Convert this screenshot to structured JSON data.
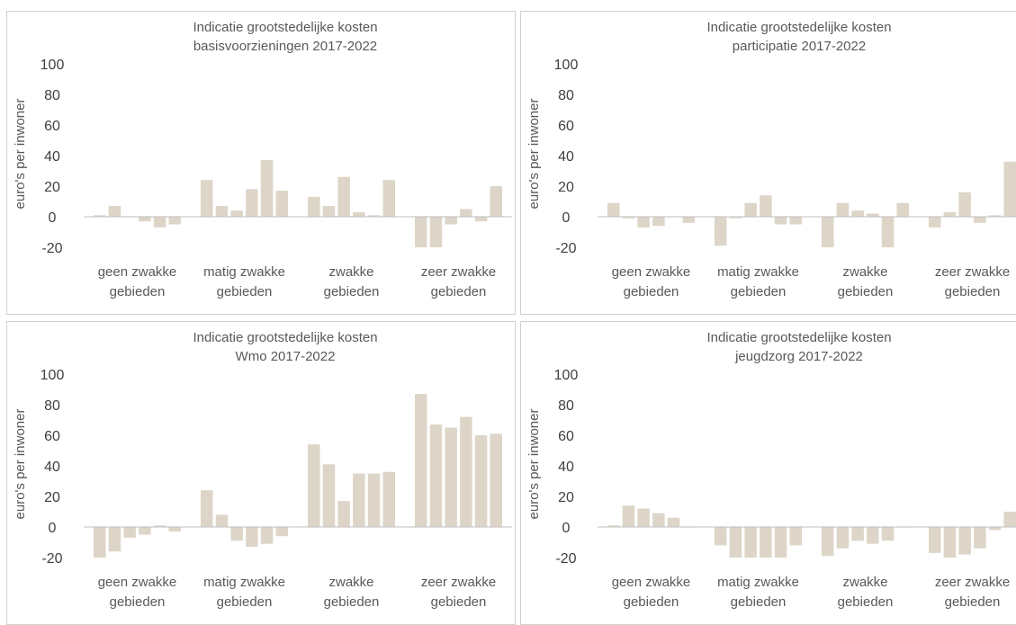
{
  "bar_color": "#ddd5c8",
  "axis_color": "#bfbfbf",
  "chart_data": [
    {
      "type": "bar",
      "title": [
        "Indicatie grootstedelijke kosten",
        "basisvoorzieningen 2017-2022"
      ],
      "ylabel": "euro's per inwoner",
      "ylim": [
        -20,
        100
      ],
      "yticks": [
        100,
        80,
        60,
        40,
        20,
        0,
        -20
      ],
      "categories": [
        [
          "geen zwakke",
          "gebieden"
        ],
        [
          "matig zwakke",
          "gebieden"
        ],
        [
          "zwakke",
          "gebieden"
        ],
        [
          "zeer zwakke",
          "gebieden"
        ]
      ],
      "values": [
        [
          1,
          7,
          0,
          -3,
          -7,
          -5
        ],
        [
          24,
          7,
          4,
          18,
          37,
          17
        ],
        [
          13,
          7,
          26,
          3,
          1,
          24
        ],
        [
          -20,
          -20,
          -5,
          5,
          -3,
          20
        ]
      ]
    },
    {
      "type": "bar",
      "title": [
        "Indicatie grootstedelijke kosten",
        "participatie 2017-2022"
      ],
      "ylabel": "euro's per inwoner",
      "ylim": [
        -20,
        100
      ],
      "yticks": [
        100,
        80,
        60,
        40,
        20,
        0,
        -20
      ],
      "categories": [
        [
          "geen zwakke",
          "gebieden"
        ],
        [
          "matig zwakke",
          "gebieden"
        ],
        [
          "zwakke",
          "gebieden"
        ],
        [
          "zeer zwakke",
          "gebieden"
        ]
      ],
      "values": [
        [
          9,
          -1,
          -7,
          -6,
          0,
          -4
        ],
        [
          -19,
          -1,
          9,
          14,
          -5,
          -5
        ],
        [
          -20,
          9,
          4,
          2,
          -20,
          9
        ],
        [
          -7,
          3,
          16,
          -4,
          1,
          36
        ]
      ]
    },
    {
      "type": "bar",
      "title": [
        "Indicatie grootstedelijke kosten",
        "Wmo 2017-2022"
      ],
      "ylabel": "euro's per inwoner",
      "ylim": [
        -20,
        100
      ],
      "yticks": [
        100,
        80,
        60,
        40,
        20,
        0,
        -20
      ],
      "categories": [
        [
          "geen zwakke",
          "gebieden"
        ],
        [
          "matig zwakke",
          "gebieden"
        ],
        [
          "zwakke",
          "gebieden"
        ],
        [
          "zeer zwakke",
          "gebieden"
        ]
      ],
      "values": [
        [
          -20,
          -16,
          -7,
          -5,
          1,
          -3
        ],
        [
          24,
          8,
          -9,
          -13,
          -11,
          -6
        ],
        [
          54,
          41,
          17,
          35,
          35,
          36
        ],
        [
          87,
          67,
          65,
          72,
          60,
          61
        ]
      ]
    },
    {
      "type": "bar",
      "title": [
        "Indicatie grootstedelijke kosten",
        "jeugdzorg 2017-2022"
      ],
      "ylabel": "euro's per inwoner",
      "ylim": [
        -20,
        100
      ],
      "yticks": [
        100,
        80,
        60,
        40,
        20,
        0,
        -20
      ],
      "categories": [
        [
          "geen zwakke",
          "gebieden"
        ],
        [
          "matig zwakke",
          "gebieden"
        ],
        [
          "zwakke",
          "gebieden"
        ],
        [
          "zeer zwakke",
          "gebieden"
        ]
      ],
      "values": [
        [
          1,
          14,
          12,
          9,
          6,
          0
        ],
        [
          -12,
          -20,
          -20,
          -20,
          -20,
          -12
        ],
        [
          -19,
          -14,
          -9,
          -11,
          -9,
          0
        ],
        [
          -17,
          -20,
          -18,
          -14,
          -2,
          10
        ]
      ]
    }
  ]
}
